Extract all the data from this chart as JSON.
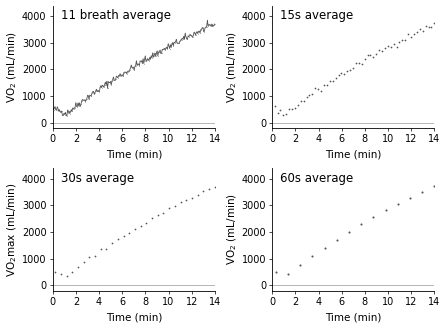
{
  "panels": [
    {
      "title": "11 breath average",
      "ylabel": "VO$_2$ (mL/min)",
      "xlabel": "Time (min)",
      "xlim": [
        0,
        14
      ],
      "ylim": [
        -200,
        4400
      ],
      "yticks": [
        0,
        1000,
        2000,
        3000,
        4000
      ],
      "xticks": [
        0,
        2,
        4,
        6,
        8,
        10,
        12,
        14
      ]
    },
    {
      "title": "15s average",
      "ylabel": "VO$_2$ (mL/min)",
      "xlabel": "Time (min)",
      "xlim": [
        0,
        14
      ],
      "ylim": [
        -200,
        4400
      ],
      "yticks": [
        0,
        1000,
        2000,
        3000,
        4000
      ],
      "xticks": [
        0,
        2,
        4,
        6,
        8,
        10,
        12,
        14
      ]
    },
    {
      "title": "30s average",
      "ylabel": "VO$_2$max (mL/min)",
      "xlabel": "Time (min)",
      "xlim": [
        0,
        14
      ],
      "ylim": [
        -200,
        4400
      ],
      "yticks": [
        0,
        1000,
        2000,
        3000,
        4000
      ],
      "xticks": [
        0,
        2,
        4,
        6,
        8,
        10,
        12,
        14
      ]
    },
    {
      "title": "60s average",
      "ylabel": "VO$_2$ (mL/min)",
      "xlabel": "Time (min)",
      "xlim": [
        0,
        14
      ],
      "ylim": [
        -200,
        4400
      ],
      "yticks": [
        0,
        1000,
        2000,
        3000,
        4000
      ],
      "xticks": [
        0,
        2,
        4,
        6,
        8,
        10,
        12,
        14
      ]
    }
  ],
  "dot_color": "#555555",
  "line_color": "#555555",
  "bg_color": "#ffffff",
  "title_fontsize": 8.5,
  "label_fontsize": 7.5,
  "tick_fontsize": 7
}
